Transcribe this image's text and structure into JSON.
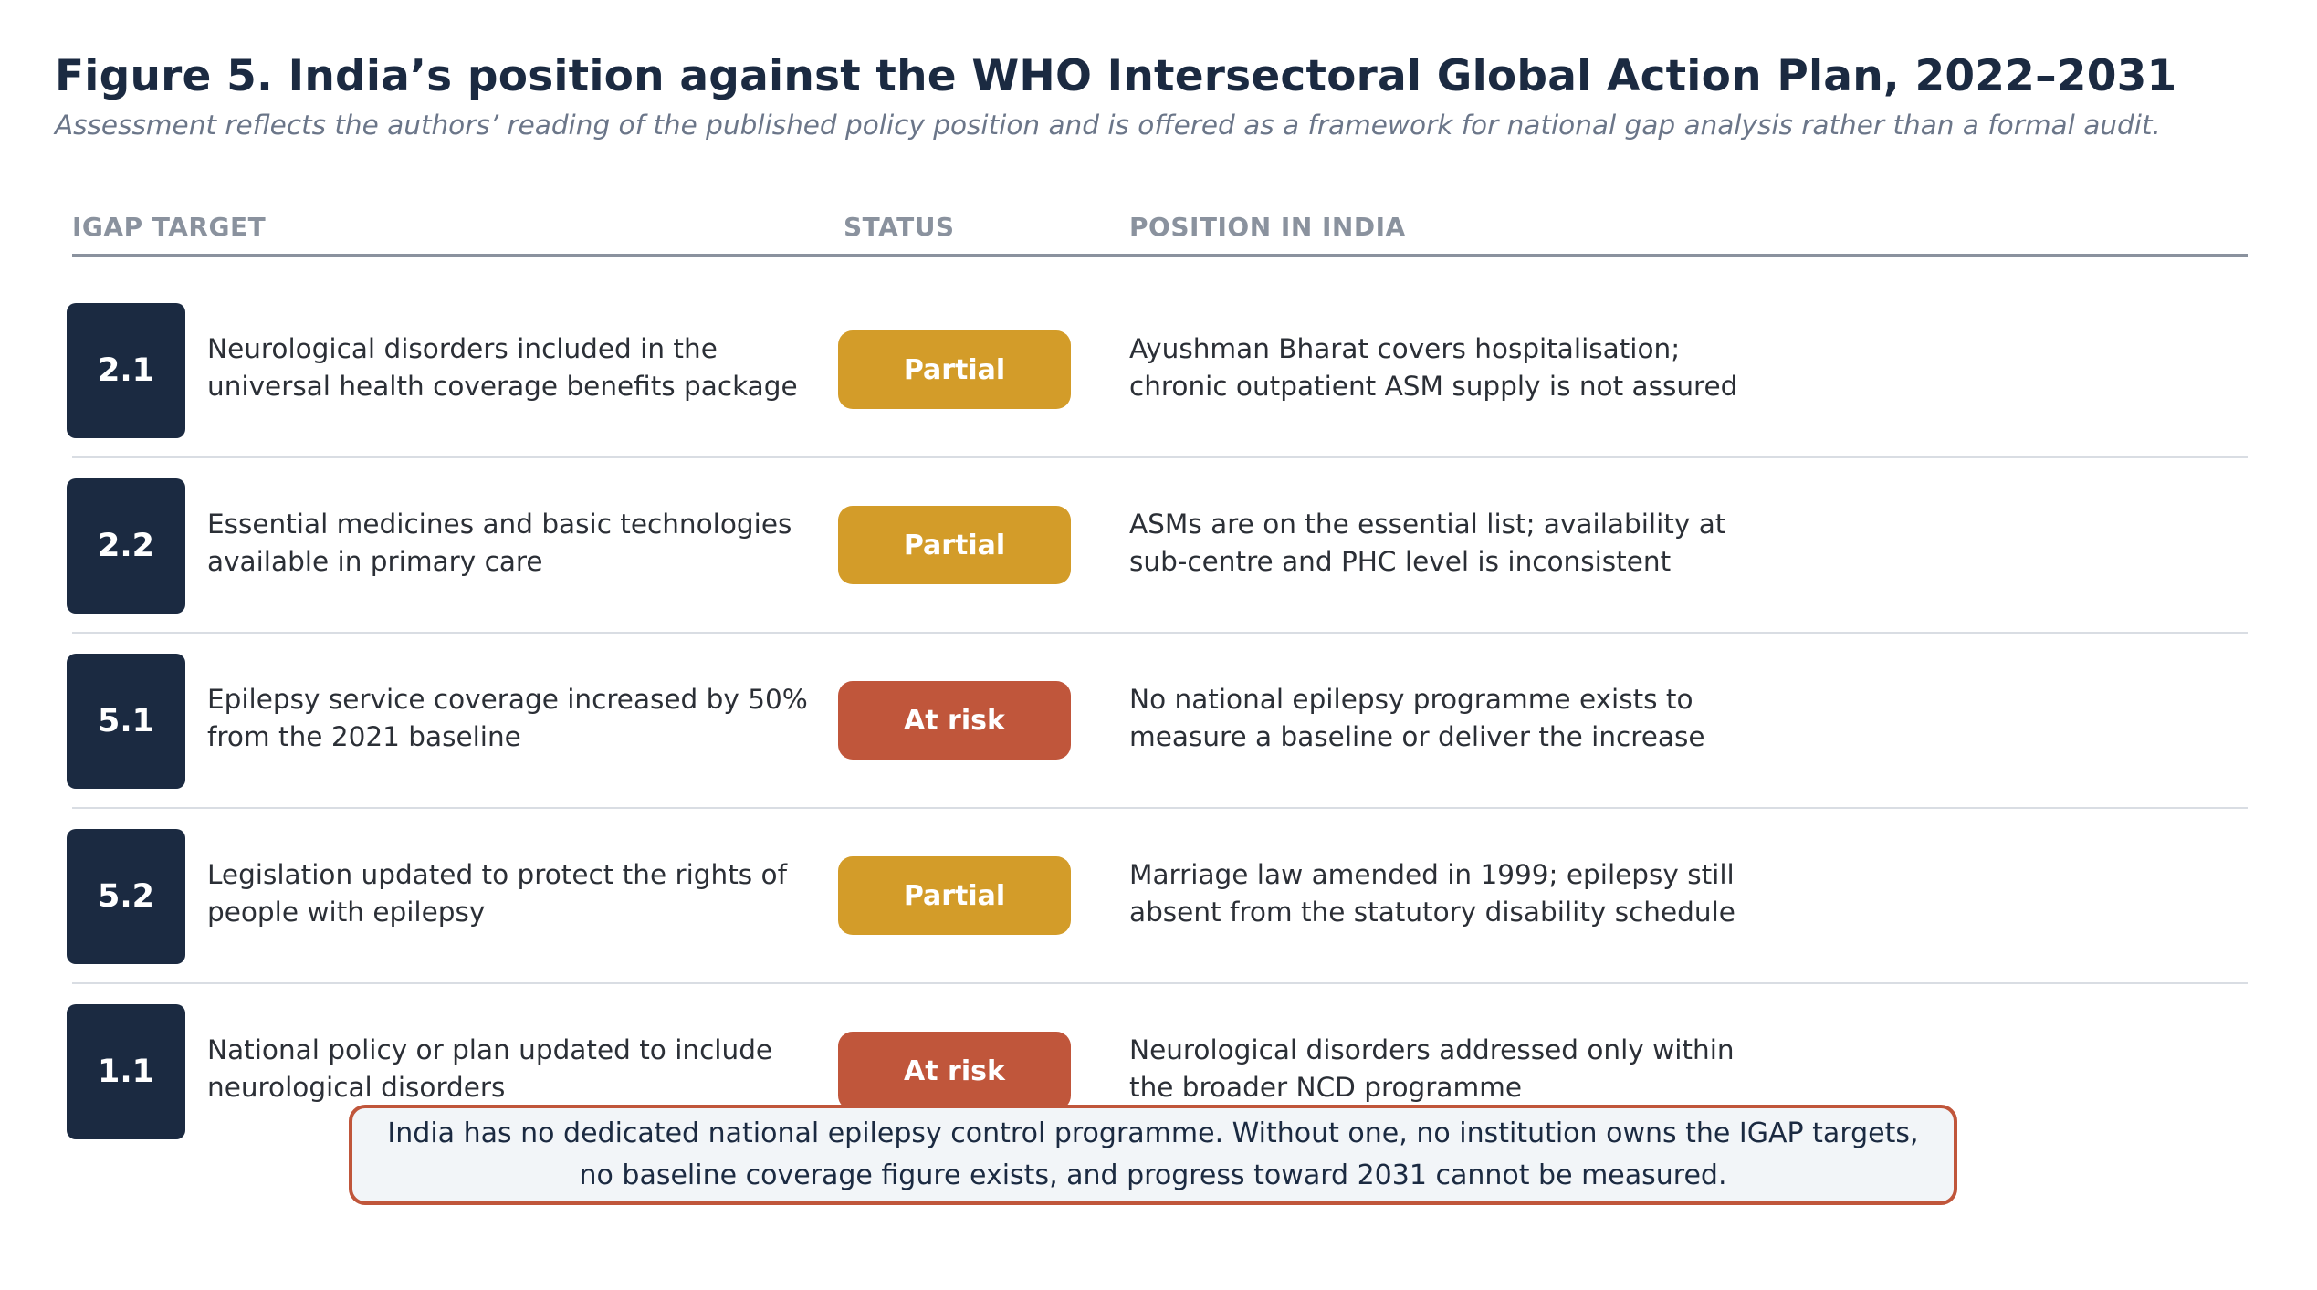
{
  "figure": {
    "title": "Figure 5.  India’s position against the WHO Intersectoral Global Action Plan, 2022–2031",
    "subtitle": "Assessment reflects the authors’ reading of the published policy position and is offered as a framework for national gap analysis rather than a formal audit."
  },
  "table": {
    "headers": {
      "target": "IGAP TARGET",
      "status": "STATUS",
      "position": "POSITION IN INDIA"
    },
    "rows": [
      {
        "id": "2.1",
        "target": [
          "Neurological disorders included in the",
          "universal health coverage benefits package"
        ],
        "status": "Partial",
        "position": [
          "Ayushman Bharat covers hospitalisation;",
          "chronic outpatient ASM supply is not assured"
        ]
      },
      {
        "id": "2.2",
        "target": [
          "Essential medicines and basic technologies",
          "available in primary care"
        ],
        "status": "Partial",
        "position": [
          "ASMs are on the essential list; availability at",
          "sub-centre and PHC level is inconsistent"
        ]
      },
      {
        "id": "5.1",
        "target": [
          "Epilepsy service coverage increased by 50%",
          "from the 2021 baseline"
        ],
        "status": "At risk",
        "position": [
          "No national epilepsy programme exists to",
          "measure a baseline or deliver the increase"
        ]
      },
      {
        "id": "5.2",
        "target": [
          "Legislation updated to protect the rights of",
          "people with epilepsy"
        ],
        "status": "Partial",
        "position": [
          "Marriage law amended in 1999; epilepsy still",
          "absent from the statutory disability schedule"
        ]
      },
      {
        "id": "1.1",
        "target": [
          "National policy or plan updated to include",
          "neurological disorders"
        ],
        "status": "At risk",
        "position": [
          "Neurological disorders addressed only within",
          "the broader NCD programme"
        ]
      }
    ]
  },
  "callout": {
    "lines": [
      "India has no dedicated national epilepsy control programme. Without one, no institution owns the IGAP targets,",
      "no baseline coverage figure exists, and progress toward 2031 cannot be measured."
    ]
  },
  "colors": {
    "navy": "#1b2a41",
    "partial": "#d39c29",
    "at_risk": "#c0563b",
    "callout_border": "#c0563b",
    "callout_bg": "#f2f5f8"
  }
}
